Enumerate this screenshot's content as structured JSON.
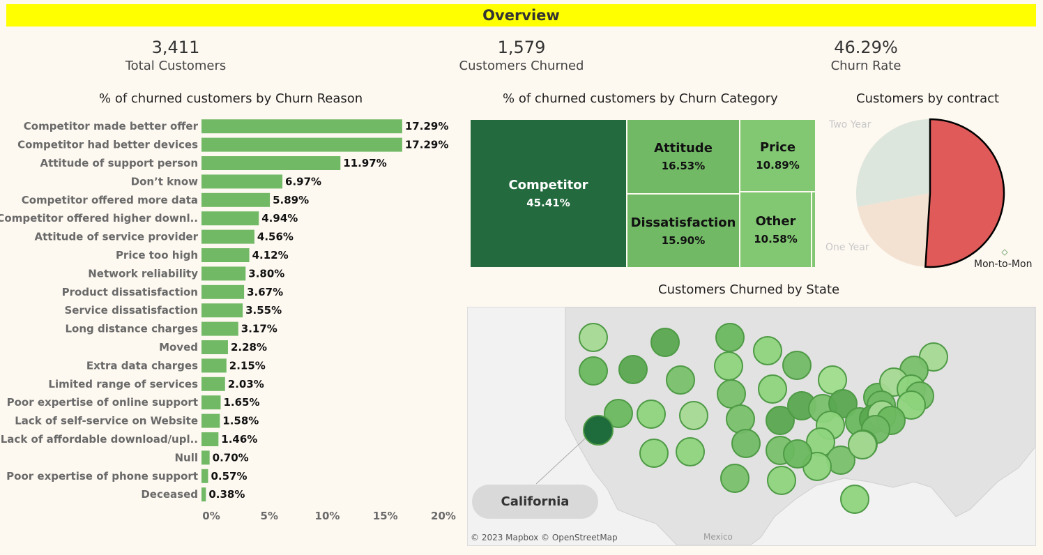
{
  "header": {
    "title": "Overview"
  },
  "kpis": [
    {
      "value": "3,411",
      "label": "Total Customers"
    },
    {
      "value": "1,579",
      "label": "Customers Churned"
    },
    {
      "value": "46.29%",
      "label": "Churn Rate"
    }
  ],
  "chart_data": [
    {
      "type": "bar",
      "orientation": "horizontal",
      "title": "% of churned customers by Churn Reason",
      "categories": [
        "Competitor made better offer",
        "Competitor had better devices",
        "Attitude of support person",
        "Don’t know",
        "Competitor offered more data",
        "Competitor offered higher downl..",
        "Attitude of service provider",
        "Price too high",
        "Network reliability",
        "Product dissatisfaction",
        "Service dissatisfaction",
        "Long distance charges",
        "Moved",
        "Extra data charges",
        "Limited range of services",
        "Poor expertise of online support",
        "Lack of self-service on Website",
        "Lack of affordable download/upl..",
        "Null",
        "Poor expertise of phone support",
        "Deceased"
      ],
      "values": [
        17.29,
        17.29,
        11.97,
        6.97,
        5.89,
        4.94,
        4.56,
        4.12,
        3.8,
        3.67,
        3.55,
        3.17,
        2.28,
        2.15,
        2.03,
        1.65,
        1.58,
        1.46,
        0.7,
        0.57,
        0.38
      ],
      "value_labels": [
        "17.29%",
        "17.29%",
        "11.97%",
        "6.97%",
        "5.89%",
        "4.94%",
        "4.56%",
        "4.12%",
        "3.80%",
        "3.67%",
        "3.55%",
        "3.17%",
        "2.28%",
        "2.15%",
        "2.03%",
        "1.65%",
        "1.58%",
        "1.46%",
        "0.70%",
        "0.57%",
        "0.38%"
      ],
      "xticks": [
        "0%",
        "5%",
        "10%",
        "15%",
        "20%"
      ],
      "xlim": [
        0,
        20
      ],
      "color": "#72b966"
    },
    {
      "type": "treemap",
      "title": "% of churned customers by Churn Category",
      "items": [
        {
          "name": "Competitor",
          "value": "45.41%",
          "color": "#236b3e"
        },
        {
          "name": "Attitude",
          "value": "16.53%",
          "color": "#72b966"
        },
        {
          "name": "Dissatisfaction",
          "value": "15.90%",
          "color": "#72b966"
        },
        {
          "name": "Price",
          "value": "10.89%",
          "color": "#82c873"
        },
        {
          "name": "Other",
          "value": "10.58%",
          "color": "#82c873"
        }
      ]
    },
    {
      "type": "pie",
      "title": "Customers by contract",
      "slices": [
        {
          "label": "Mon-to-Mon",
          "value": 51,
          "color": "#e05a5a"
        },
        {
          "label": "One Year",
          "value": 21,
          "color": "#f3e2d2"
        },
        {
          "label": "Two Year",
          "value": 28,
          "color": "#dde6dc"
        }
      ]
    },
    {
      "type": "map",
      "title": "Customers Churned by State",
      "highlight": "California",
      "attribution": "© 2023 Mapbox © OpenStreetMap",
      "label": "Mexico"
    }
  ]
}
